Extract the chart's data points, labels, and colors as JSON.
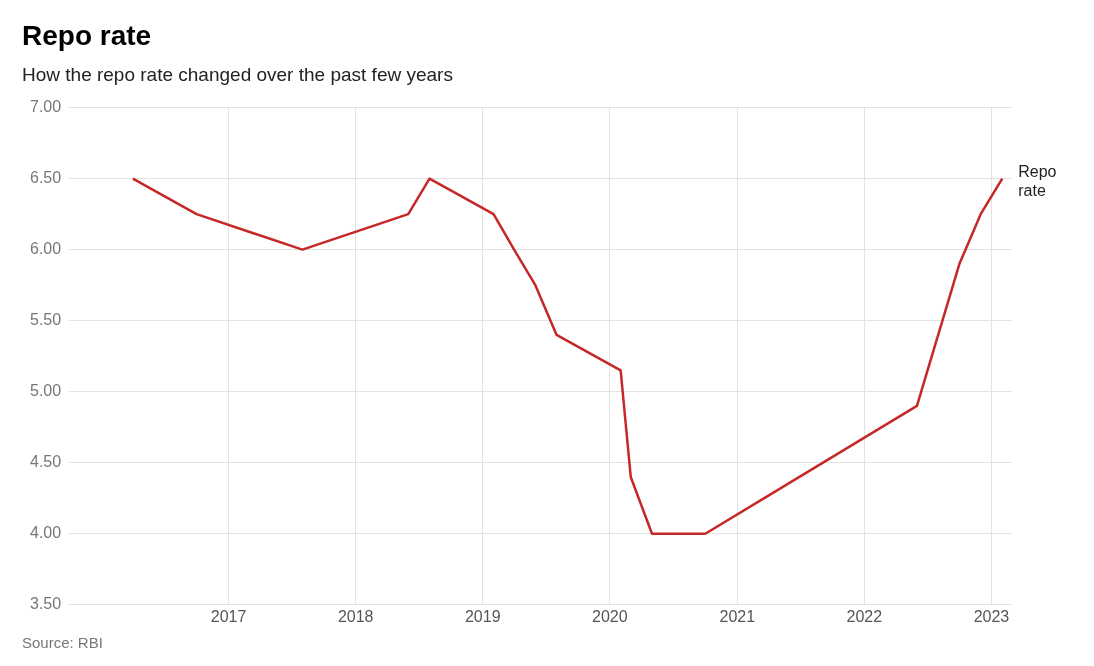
{
  "chart_data": {
    "type": "line",
    "title": "Repo rate",
    "subtitle": "How the repo rate changed over the past few years",
    "x": [
      "2016-04",
      "2016-10",
      "2017-08",
      "2018-06",
      "2018-08",
      "2019-02",
      "2019-04",
      "2019-06",
      "2019-08",
      "2020-02",
      "2020-03",
      "2020-05",
      "2020-10",
      "2022-06",
      "2022-10",
      "2022-12",
      "2023-02"
    ],
    "series": [
      {
        "name": "Repo rate",
        "color": "#c62828",
        "values": [
          6.5,
          6.25,
          6.0,
          6.25,
          6.5,
          6.25,
          6.0,
          5.75,
          5.4,
          5.15,
          4.4,
          4.0,
          4.0,
          4.9,
          5.9,
          6.25,
          6.5
        ]
      }
    ],
    "xlim": [
      "2015-10",
      "2023-03"
    ],
    "xticks": [
      "2017",
      "2018",
      "2019",
      "2020",
      "2021",
      "2022",
      "2023"
    ],
    "ylim": [
      3.5,
      7
    ],
    "yticks": [
      {
        "value": 3.5,
        "label": "3.50"
      },
      {
        "value": 4,
        "label": "4.00"
      },
      {
        "value": 4.5,
        "label": "4.50"
      },
      {
        "value": 5,
        "label": "5.00"
      },
      {
        "value": 5.5,
        "label": "5.50"
      },
      {
        "value": 6,
        "label": "6.00"
      },
      {
        "value": 6.5,
        "label": "6.50"
      },
      {
        "value": 7,
        "label": "7.00"
      }
    ],
    "grid": true,
    "legend": false,
    "marker": "none",
    "line_style": "solid",
    "annotations": [
      "Source: RBI"
    ]
  }
}
